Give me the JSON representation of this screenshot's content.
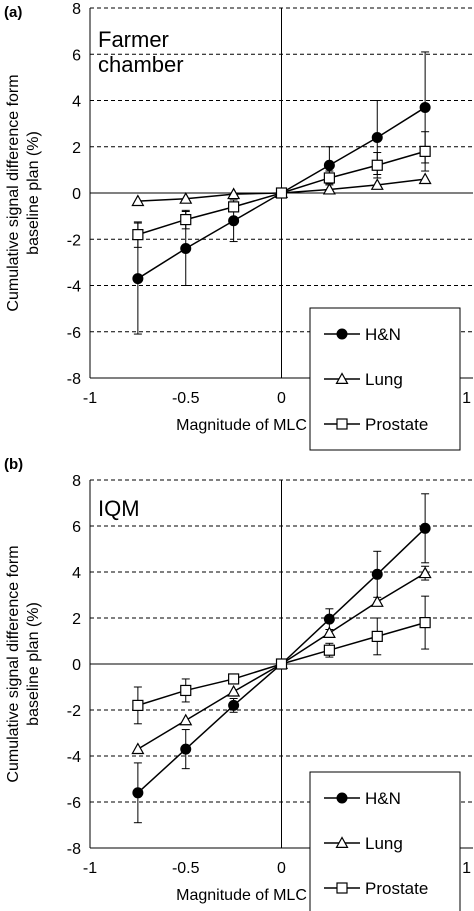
{
  "chart_data": [
    {
      "type": "line",
      "panel_label": "(a)",
      "title": "Farmer\nchamber",
      "xlabel": "Magnitude of MLC error (mm)",
      "ylabel": "Cumulative signal difference form\nbaseline plan (%)",
      "xlim": [
        -1,
        1
      ],
      "ylim": [
        -8,
        8
      ],
      "xticks": [
        -1,
        -0.5,
        0,
        0.5,
        1
      ],
      "xtick_labels": [
        "-1",
        "-0.5",
        "0",
        "0.5",
        "1"
      ],
      "yticks": [
        -8,
        -6,
        -4,
        -2,
        0,
        2,
        4,
        6,
        8
      ],
      "ytick_labels": [
        "-8",
        "-6",
        "-4",
        "-2",
        "0",
        "2",
        "4",
        "6",
        "8"
      ],
      "grid": "horizontal dashed",
      "legend_position": "bottom-right",
      "x": [
        -0.75,
        -0.5,
        -0.25,
        0,
        0.25,
        0.5,
        0.75
      ],
      "series": [
        {
          "name": "H&N",
          "marker": "circle",
          "values": [
            -3.7,
            -2.4,
            -1.2,
            0,
            1.2,
            2.4,
            3.7
          ],
          "errors": [
            2.4,
            1.6,
            0.9,
            0,
            0.8,
            1.6,
            2.4
          ]
        },
        {
          "name": "Lung",
          "marker": "triangle",
          "values": [
            -0.35,
            -0.25,
            -0.05,
            0,
            0.15,
            0.35,
            0.6
          ],
          "errors": [
            0,
            0,
            0,
            0,
            0,
            0,
            0
          ]
        },
        {
          "name": "Prostate",
          "marker": "square",
          "values": [
            -1.8,
            -1.15,
            -0.6,
            0,
            0.65,
            1.2,
            1.8
          ],
          "errors": [
            0.55,
            0.4,
            0.2,
            0,
            0.3,
            0.55,
            0.85
          ]
        }
      ]
    },
    {
      "type": "line",
      "panel_label": "(b)",
      "title": "IQM",
      "xlabel": "Magnitude of MLC error (mm)",
      "ylabel": "Cumulative signal difference form\nbaseline plan (%)",
      "xlim": [
        -1,
        1
      ],
      "ylim": [
        -8,
        8
      ],
      "xticks": [
        -1,
        -0.5,
        0,
        0.5,
        1
      ],
      "xtick_labels": [
        "-1",
        "-0.5",
        "0",
        "0.5",
        "1"
      ],
      "yticks": [
        -8,
        -6,
        -4,
        -2,
        0,
        2,
        4,
        6,
        8
      ],
      "ytick_labels": [
        "-8",
        "-6",
        "-4",
        "-2",
        "0",
        "2",
        "4",
        "6",
        "8"
      ],
      "grid": "horizontal dashed",
      "legend_position": "bottom-right",
      "x": [
        -0.75,
        -0.5,
        -0.25,
        0,
        0.25,
        0.5,
        0.75
      ],
      "series": [
        {
          "name": "H&N",
          "marker": "circle",
          "values": [
            -5.6,
            -3.7,
            -1.8,
            0,
            1.95,
            3.9,
            5.9
          ],
          "errors": [
            1.3,
            0.85,
            0.3,
            0,
            0.45,
            1.0,
            1.5
          ]
        },
        {
          "name": "Lung",
          "marker": "triangle",
          "values": [
            -3.7,
            -2.45,
            -1.2,
            0,
            1.35,
            2.7,
            3.95
          ],
          "errors": [
            0,
            0,
            0,
            0,
            0,
            0,
            0.3
          ]
        },
        {
          "name": "Prostate",
          "marker": "square",
          "values": [
            -1.8,
            -1.15,
            -0.65,
            0,
            0.6,
            1.2,
            1.8
          ],
          "errors": [
            0.8,
            0.5,
            0.15,
            0,
            0.3,
            0.8,
            1.15
          ]
        }
      ]
    }
  ]
}
